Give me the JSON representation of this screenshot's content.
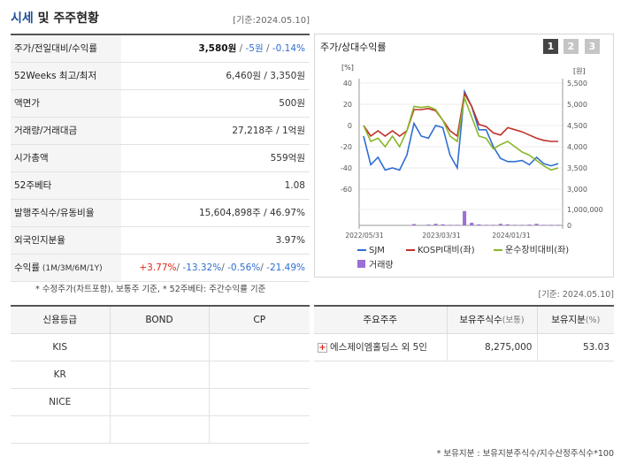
{
  "header": {
    "title_hl": "시세",
    "title_rest": " 및 주주현황",
    "date": "[기준:2024.05.10]"
  },
  "quote_rows": {
    "price": {
      "label": "주가/전일대비/수익률",
      "price": "3,580원",
      "sep1": " / ",
      "change": "-5원",
      "sep2": " / ",
      "rate": "-0.14%"
    },
    "week52": {
      "label": "52Weeks 최고/최저",
      "value": "6,460원 / 3,350원"
    },
    "par": {
      "label": "액면가",
      "value": "500원"
    },
    "volume": {
      "label": "거래량/거래대금",
      "value": "27,218주 / 1억원"
    },
    "mcap": {
      "label": "시가총액",
      "value": "559억원"
    },
    "beta": {
      "label": "52주베타",
      "value": "1.08"
    },
    "shares": {
      "label": "발행주식수/유동비율",
      "value": "15,604,898주 / 46.97%"
    },
    "foreign": {
      "label": "외국인지분율",
      "value": "3.97%"
    },
    "returns": {
      "label_main": "수익률",
      "label_sub": " (1M/3M/6M/1Y)",
      "r1": "+3.77%",
      "s1": "/ ",
      "r2": "-13.32%",
      "s2": "/ ",
      "r3": "-0.56%",
      "s3": "/ ",
      "r4": "-21.49%"
    }
  },
  "chart_panel": {
    "title": "주가/상대수익률",
    "tabs": [
      "1",
      "2",
      "3"
    ]
  },
  "chart_data": {
    "type": "line",
    "left_axis_unit": "[%]",
    "right_axis_unit": "[원]",
    "left_ticks": [
      40,
      20,
      0,
      -20,
      -40,
      -60
    ],
    "right_ticks": [
      "5,500",
      "5,000",
      "4,500",
      "4,000",
      "3,500",
      "3,000"
    ],
    "volume_ticks": [
      "1,000,000",
      "0"
    ],
    "x_labels": [
      "2022/05/31",
      "2023/03/31",
      "2024/01/31"
    ],
    "ylim_left": [
      -60,
      40
    ],
    "series": [
      {
        "name": "SJM",
        "color": "#2f6fd0",
        "values": [
          -10,
          -37,
          -30,
          -42,
          -40,
          -42,
          -28,
          2,
          -10,
          -12,
          0,
          -2,
          -28,
          -40,
          32,
          18,
          -4,
          -4,
          -20,
          -31,
          -34,
          -34,
          -33,
          -37,
          -30,
          -36,
          -38,
          -36
        ]
      },
      {
        "name": "KOSPI대비(좌)",
        "color": "#c0302a",
        "values": [
          0,
          -10,
          -5,
          -10,
          -5,
          -10,
          -5,
          15,
          15,
          16,
          14,
          5,
          -5,
          -10,
          30,
          18,
          1,
          -1,
          -7,
          -9,
          -2,
          -4,
          -6,
          -9,
          -12,
          -14,
          -15,
          -15
        ]
      },
      {
        "name": "운수장비대비(좌)",
        "color": "#8ab62a",
        "values": [
          0,
          -15,
          -12,
          -20,
          -10,
          -20,
          -5,
          18,
          17,
          18,
          15,
          5,
          -10,
          -15,
          26,
          8,
          -10,
          -12,
          -22,
          -18,
          -15,
          -20,
          -25,
          -28,
          -33,
          -38,
          -42,
          -40
        ]
      }
    ],
    "volume": {
      "name": "거래량",
      "color": "#9b6fd6",
      "values": [
        0,
        0,
        0,
        0,
        0,
        0,
        0,
        0.05,
        0,
        0.03,
        0.06,
        0.04,
        0.02,
        0.02,
        0.55,
        0.1,
        0.04,
        0.02,
        0.02,
        0.06,
        0.04,
        0.02,
        0.02,
        0.03,
        0.06,
        0.02,
        0.02,
        0.02
      ]
    }
  },
  "notes": {
    "left": "* 수정주가(차트포함), 보통주 기준, * 52주베타: 주간수익률 기준",
    "date": "[기준: 2024.05.10]",
    "bottom": "* 보유지분 : 보유지분주식수/지수산정주식수*100"
  },
  "credit": {
    "headers": [
      "신용등급",
      "BOND",
      "CP"
    ],
    "rows": [
      {
        "agency": "KIS",
        "bond": "",
        "cp": ""
      },
      {
        "agency": "KR",
        "bond": "",
        "cp": ""
      },
      {
        "agency": "NICE",
        "bond": "",
        "cp": ""
      },
      {
        "agency": "",
        "bond": "",
        "cp": ""
      }
    ]
  },
  "holders": {
    "h1": "주요주주",
    "h2": "보유주식수",
    "h2_sub": "(보통)",
    "h3": "보유지분",
    "h3_sub": "(%)",
    "rows": [
      {
        "name": "에스제이엠홀딩스 외 5인",
        "shares": "8,275,000",
        "pct": "53.03"
      }
    ]
  }
}
